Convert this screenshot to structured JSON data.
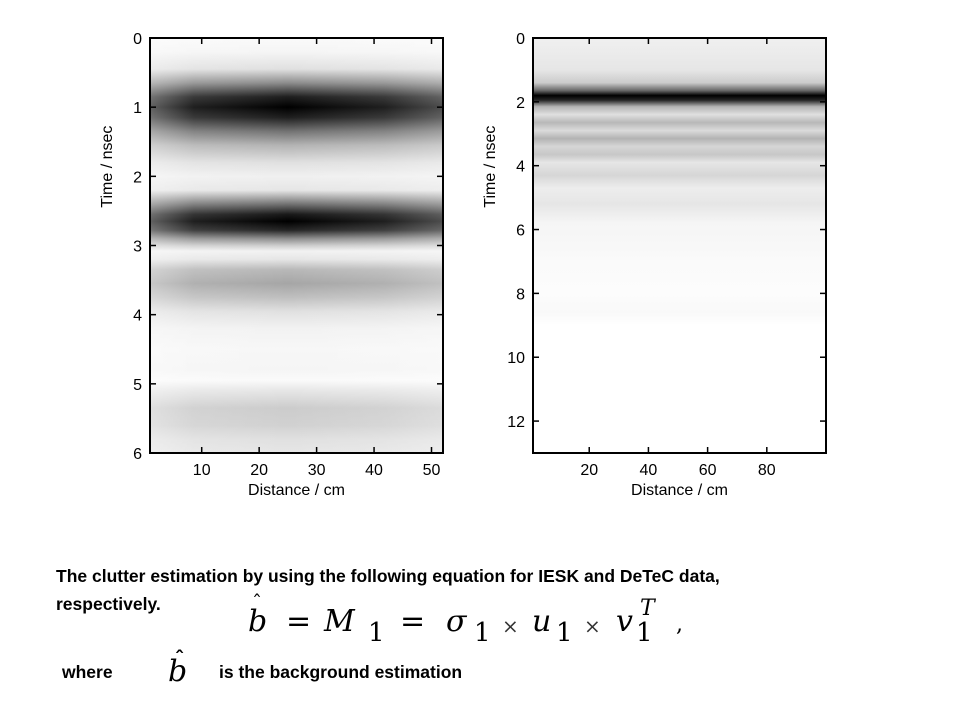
{
  "chart_data": [
    {
      "type": "heatmap",
      "title": "",
      "xlabel": "Distance / cm",
      "ylabel": "Time / nsec",
      "xlim": [
        1,
        52
      ],
      "ylim": [
        0,
        6
      ],
      "y_inverted": true,
      "xticks": [
        10,
        20,
        30,
        40,
        50
      ],
      "yticks": [
        0,
        1,
        2,
        3,
        4,
        5,
        6
      ],
      "colormap": "gray (black = high amplitude)",
      "x_variation": "darker near center distance 25 cm",
      "intensity_profile": [
        {
          "y": 0.0,
          "v": 0.02
        },
        {
          "y": 0.2,
          "v": 0.04
        },
        {
          "y": 0.45,
          "v": 0.12
        },
        {
          "y": 0.65,
          "v": 0.45
        },
        {
          "y": 0.85,
          "v": 0.88
        },
        {
          "y": 1.0,
          "v": 1.0
        },
        {
          "y": 1.15,
          "v": 0.88
        },
        {
          "y": 1.35,
          "v": 0.55
        },
        {
          "y": 1.55,
          "v": 0.3
        },
        {
          "y": 1.8,
          "v": 0.12
        },
        {
          "y": 2.0,
          "v": 0.06
        },
        {
          "y": 2.2,
          "v": 0.1
        },
        {
          "y": 2.4,
          "v": 0.55
        },
        {
          "y": 2.55,
          "v": 0.9
        },
        {
          "y": 2.65,
          "v": 1.0
        },
        {
          "y": 2.78,
          "v": 0.85
        },
        {
          "y": 2.9,
          "v": 0.45
        },
        {
          "y": 3.0,
          "v": 0.2
        },
        {
          "y": 3.08,
          "v": 0.05
        },
        {
          "y": 3.2,
          "v": 0.1
        },
        {
          "y": 3.35,
          "v": 0.28
        },
        {
          "y": 3.55,
          "v": 0.35
        },
        {
          "y": 3.75,
          "v": 0.25
        },
        {
          "y": 3.95,
          "v": 0.12
        },
        {
          "y": 4.2,
          "v": 0.05
        },
        {
          "y": 4.5,
          "v": 0.03
        },
        {
          "y": 4.8,
          "v": 0.04
        },
        {
          "y": 4.95,
          "v": 0.02
        },
        {
          "y": 5.1,
          "v": 0.1
        },
        {
          "y": 5.35,
          "v": 0.2
        },
        {
          "y": 5.6,
          "v": 0.18
        },
        {
          "y": 5.8,
          "v": 0.12
        },
        {
          "y": 6.0,
          "v": 0.1
        }
      ]
    },
    {
      "type": "heatmap",
      "title": "",
      "xlabel": "Distance / cm",
      "ylabel": "Time / nsec",
      "xlim": [
        1,
        100
      ],
      "ylim": [
        0,
        13
      ],
      "y_inverted": true,
      "xticks": [
        20,
        40,
        60,
        80
      ],
      "yticks": [
        0,
        2,
        4,
        6,
        8,
        10,
        12
      ],
      "colormap": "gray (black = high amplitude)",
      "x_variation": "uniform",
      "intensity_profile": [
        {
          "y": 0.0,
          "v": 0.06
        },
        {
          "y": 1.0,
          "v": 0.1
        },
        {
          "y": 1.4,
          "v": 0.2
        },
        {
          "y": 1.65,
          "v": 0.6
        },
        {
          "y": 1.8,
          "v": 1.0
        },
        {
          "y": 1.95,
          "v": 0.85
        },
        {
          "y": 2.15,
          "v": 0.3
        },
        {
          "y": 2.4,
          "v": 0.12
        },
        {
          "y": 2.65,
          "v": 0.28
        },
        {
          "y": 2.9,
          "v": 0.14
        },
        {
          "y": 3.15,
          "v": 0.3
        },
        {
          "y": 3.4,
          "v": 0.16
        },
        {
          "y": 3.65,
          "v": 0.22
        },
        {
          "y": 3.9,
          "v": 0.1
        },
        {
          "y": 4.3,
          "v": 0.16
        },
        {
          "y": 4.7,
          "v": 0.07
        },
        {
          "y": 5.2,
          "v": 0.1
        },
        {
          "y": 5.8,
          "v": 0.04
        },
        {
          "y": 6.3,
          "v": 0.03
        },
        {
          "y": 7.0,
          "v": 0.02
        },
        {
          "y": 8.0,
          "v": 0.01
        },
        {
          "y": 8.6,
          "v": 0.025
        },
        {
          "y": 9.0,
          "v": 0.0
        },
        {
          "y": 13.0,
          "v": 0.0
        }
      ]
    }
  ],
  "caption": {
    "line1": "The clutter estimation by using the following equation for IESK and DeTeC data,",
    "line2": "respectively."
  },
  "equation": {
    "b": "b",
    "eq1": "=",
    "M": "M",
    "sub1a": "1",
    "eq2": "=",
    "sigma": "σ",
    "sub1b": "1",
    "times1": "×",
    "u": "u",
    "sub1c": "1",
    "times2": "×",
    "v": "v",
    "sub1d": "1",
    "sup_T": "T",
    "comma": ","
  },
  "where_line": {
    "word": "where",
    "symbol": "b",
    "text": "is the background estimation"
  }
}
